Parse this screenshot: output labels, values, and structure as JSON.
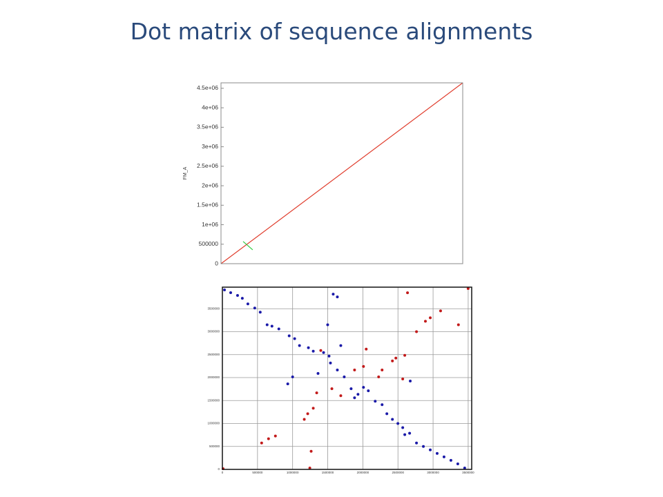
{
  "title": "Dot matrix of sequence alignments",
  "chart_data": [
    {
      "type": "line",
      "ylabel": "FM_A",
      "xlim": [
        0,
        4650000
      ],
      "ylim": [
        0,
        4640000
      ],
      "yticks": [
        0,
        500000,
        {
          "value": 1000000,
          "label": "1e+06"
        },
        {
          "value": 1500000,
          "label": "1.5e+06"
        },
        {
          "value": 2000000,
          "label": "2e+06"
        },
        {
          "value": 2500000,
          "label": "2.5e+06"
        },
        {
          "value": 3000000,
          "label": "3e+06"
        },
        {
          "value": 3500000,
          "label": "3.5e+06"
        },
        {
          "value": 4000000,
          "label": "4e+06"
        },
        {
          "value": 4500000,
          "label": "4.5e+06"
        }
      ],
      "series": [
        {
          "color": "#e03c2c",
          "x": [
            0,
            4650000
          ],
          "values": [
            0,
            4640000
          ]
        },
        {
          "color": "#33cc44",
          "x": [
            425000,
            610000
          ],
          "values": [
            570000,
            355000
          ]
        }
      ]
    },
    {
      "type": "scatter",
      "grid": true,
      "xlim": [
        0,
        3550000
      ],
      "ylim": [
        0,
        3970000
      ],
      "xticks": [
        0,
        500000,
        1000000,
        1500000,
        2000000,
        2500000,
        3000000,
        3500000
      ],
      "yticks": [
        0,
        500000,
        1000000,
        1500000,
        2000000,
        2500000,
        3000000,
        3500000
      ],
      "series": [
        {
          "color": "#1a1aa8",
          "x": [
            30000,
            118000,
            216000,
            284000,
            363000,
            461000,
            539000,
            637000,
            706000,
            804000,
            951000,
            1029000,
            1098000,
            1225000,
            1294000,
            1441000,
            1519000,
            1578000,
            1637000,
            1499000,
            1686000,
            1539000,
            1637000,
            1735000,
            1833000,
            1882000,
            1931000,
            2009000,
            2078000,
            2176000,
            2274000,
            2342000,
            2421000,
            2499000,
            2568000,
            2666000,
            2764000,
            2862000,
            2960000,
            3058000,
            3156000,
            3254000,
            3352000,
            3450000,
            931000,
            1000000,
            1362000,
            2597000,
            2675000
          ],
          "values": [
            3910000,
            3850000,
            3790000,
            3727000,
            3606000,
            3515000,
            3424000,
            3151000,
            3121000,
            3060000,
            2909000,
            2848000,
            2697000,
            2651000,
            2576000,
            2545000,
            2469000,
            3818000,
            3757000,
            3151000,
            2697000,
            2318000,
            2166000,
            2015000,
            1757000,
            1560000,
            1636000,
            1788000,
            1712000,
            1485000,
            1409000,
            1212000,
            1091000,
            1000000,
            909000,
            788000,
            576000,
            500000,
            424000,
            348000,
            273000,
            197000,
            121000,
            30000,
            1863000,
            2015000,
            2091000,
            758000,
            1924000
          ]
        },
        {
          "color": "#c21a1a",
          "x": [
            10000,
            559000,
            657000,
            755000,
            1166000,
            1215000,
            1294000,
            1343000,
            1245000,
            1264000,
            1401000,
            1559000,
            1686000,
            1882000,
            2009000,
            2048000,
            2225000,
            2274000,
            2421000,
            2470000,
            2568000,
            2597000,
            2636000,
            2764000,
            2891000,
            2960000,
            3107000,
            3361000,
            3499000
          ],
          "values": [
            15000,
            576000,
            667000,
            727000,
            1091000,
            1212000,
            1333000,
            1667000,
            30000,
            394000,
            2591000,
            1757000,
            1606000,
            2166000,
            2242000,
            2621000,
            2015000,
            2166000,
            2363000,
            2424000,
            1970000,
            2485000,
            3848000,
            3000000,
            3227000,
            3303000,
            3454000,
            3151000,
            3939000
          ]
        }
      ]
    }
  ]
}
